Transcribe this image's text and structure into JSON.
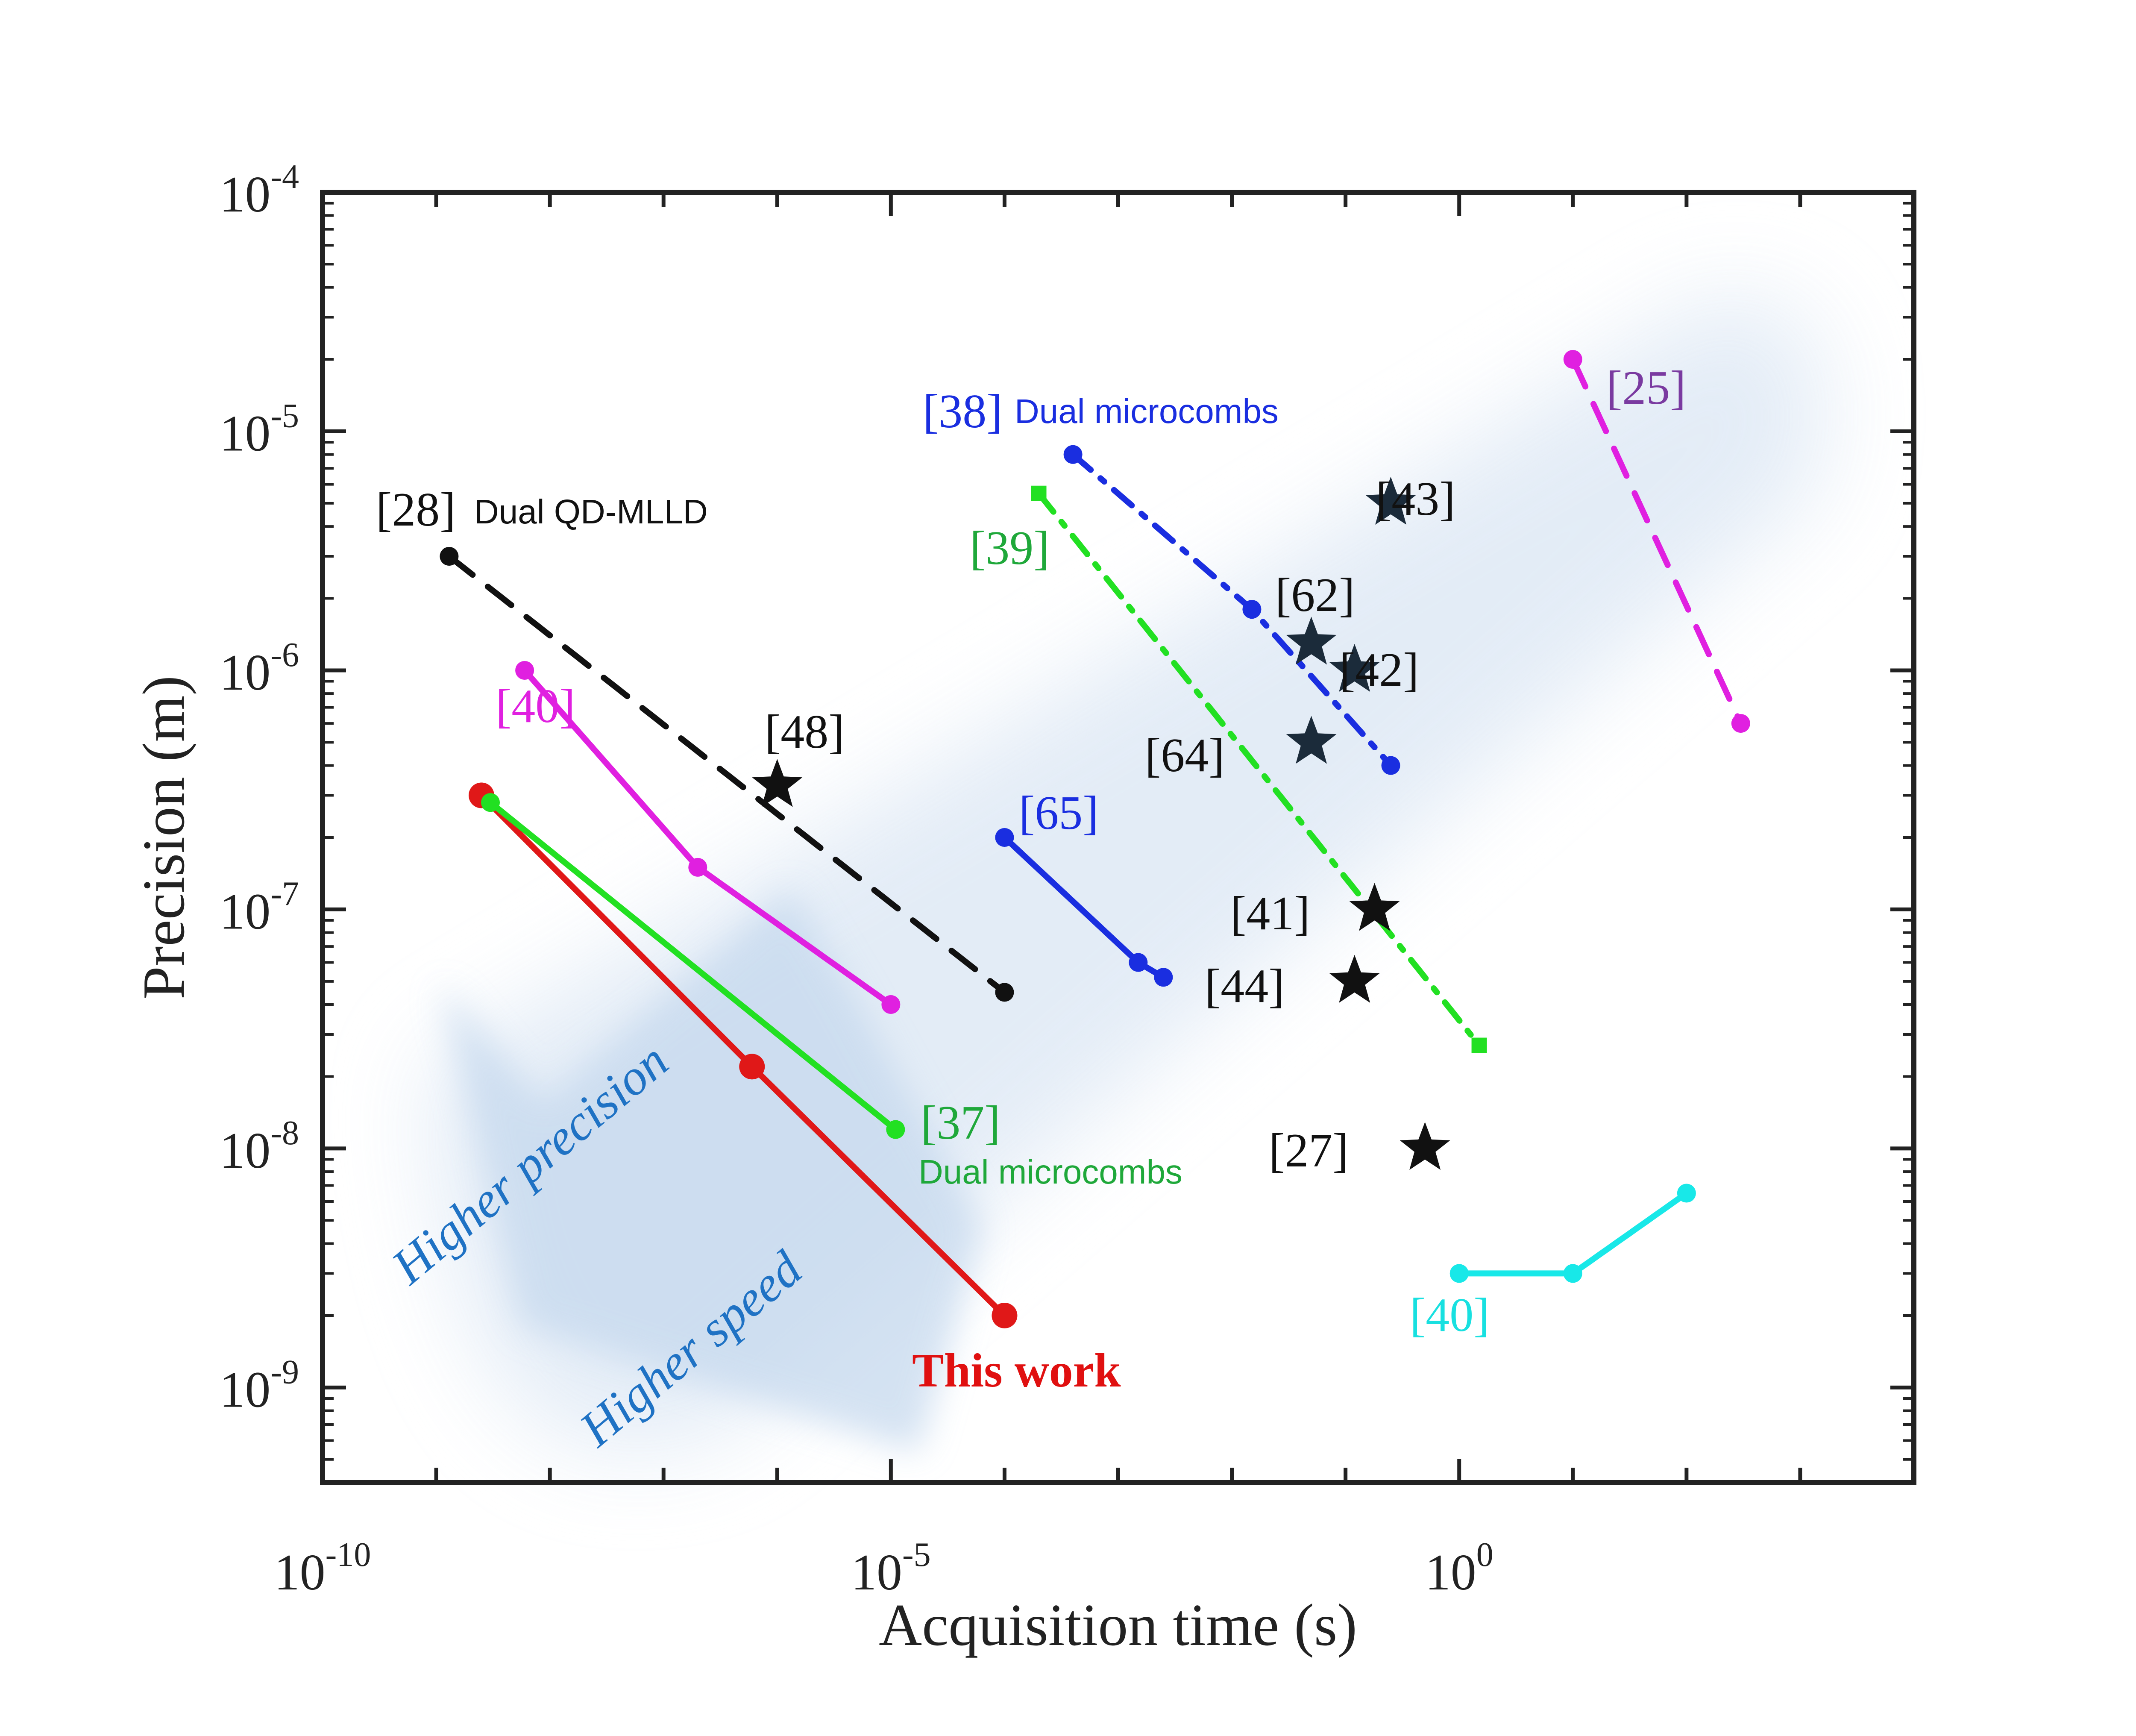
{
  "chart_data": {
    "type": "line",
    "xscale": "log",
    "yscale": "log",
    "xlabel": "Acquisition time (s)",
    "ylabel": "Precision (m)",
    "xlim": [
      1e-10,
      10000.0
    ],
    "ylim": [
      4e-10,
      0.0001
    ],
    "x_ticks": [
      {
        "base": "10",
        "exp": "-10",
        "value": 1e-10
      },
      {
        "base": "10",
        "exp": "-5",
        "value": 1e-05
      },
      {
        "base": "10",
        "exp": "0",
        "value": 1
      }
    ],
    "y_ticks": [
      {
        "base": "10",
        "exp": "-9",
        "value": 1e-09
      },
      {
        "base": "10",
        "exp": "-8",
        "value": 1e-08
      },
      {
        "base": "10",
        "exp": "-7",
        "value": 1e-07
      },
      {
        "base": "10",
        "exp": "-6",
        "value": 1e-06
      },
      {
        "base": "10",
        "exp": "-5",
        "value": 1e-05
      },
      {
        "base": "10",
        "exp": "-4",
        "value": 0.0001
      }
    ],
    "series": [
      {
        "name": "This work",
        "color": "#e01818",
        "dash": "solid",
        "marker": "circle-lg",
        "x": [
          2.5e-09,
          6e-07,
          0.0001
        ],
        "y": [
          3e-07,
          2.2e-08,
          2e-09
        ]
      },
      {
        "name": "[37]",
        "color": "#22e022",
        "dash": "solid",
        "marker": "circle",
        "x": [
          3e-09,
          1.1e-05
        ],
        "y": [
          2.8e-07,
          1.2e-08
        ]
      },
      {
        "name": "[40] magenta",
        "color": "#e020e0",
        "dash": "solid",
        "marker": "circle",
        "x": [
          6e-09,
          2e-07,
          1e-05
        ],
        "y": [
          1e-06,
          1.5e-07,
          4e-08
        ]
      },
      {
        "name": "[28]",
        "color": "#111111",
        "dash": "dashed",
        "marker": "circle",
        "x": [
          1.3e-09,
          0.0001
        ],
        "y": [
          3e-06,
          4.5e-08
        ]
      },
      {
        "name": "[65]",
        "color": "#1a2ee0",
        "dash": "solid",
        "marker": "circle",
        "x": [
          0.0001,
          0.0015,
          0.0025
        ],
        "y": [
          2e-07,
          6e-08,
          5.2e-08
        ]
      },
      {
        "name": "[38]",
        "color": "#1a2ee0",
        "dash": "dashdot",
        "marker": "circle",
        "x": [
          0.0004,
          0.015,
          0.25
        ],
        "y": [
          8e-06,
          1.8e-06,
          4e-07
        ]
      },
      {
        "name": "[39]",
        "color": "#22e022",
        "dash": "dashdot",
        "marker": "square",
        "x": [
          0.0002,
          1.5
        ],
        "y": [
          5.5e-06,
          2.7e-08
        ]
      },
      {
        "name": "[25]",
        "color": "#e020e0",
        "dash": "dashed",
        "marker": "circle",
        "x": [
          10,
          300
        ],
        "y": [
          2e-05,
          6e-07
        ]
      },
      {
        "name": "[40] cyan",
        "color": "#18e8e8",
        "dash": "solid",
        "marker": "circle",
        "x": [
          1,
          10,
          100
        ],
        "y": [
          3e-09,
          3e-09,
          6.5e-09
        ]
      }
    ],
    "stars": [
      {
        "name": "[48]",
        "x": 1e-06,
        "y": 3.3e-07,
        "color": "#111111"
      },
      {
        "name": "[43]",
        "x": 0.25,
        "y": 5e-06,
        "color": "#1b2b3a"
      },
      {
        "name": "[62]",
        "x": 0.05,
        "y": 1.3e-06,
        "color": "#1b2b3a"
      },
      {
        "name": "[42]",
        "x": 0.12,
        "y": 1e-06,
        "color": "#1b2b3a"
      },
      {
        "name": "[64]",
        "x": 0.05,
        "y": 5e-07,
        "color": "#1b2b3a"
      },
      {
        "name": "[41]",
        "x": 0.18,
        "y": 1e-07,
        "color": "#111111"
      },
      {
        "name": "[44]",
        "x": 0.12,
        "y": 5e-08,
        "color": "#111111"
      },
      {
        "name": "[27]",
        "x": 0.5,
        "y": 1e-08,
        "color": "#111111"
      }
    ],
    "labels": {
      "ref_28": "[28]",
      "note_28": "Dual QD-MLLD",
      "ref_38": "[38]",
      "note_38": "Dual microcombs",
      "ref_39": "[39]",
      "ref_40a": "[40]",
      "ref_40b": "[40]",
      "ref_65": "[65]",
      "ref_25": "[25]",
      "ref_37": "[37]",
      "note_37": "Dual microcombs",
      "ref_48": "[48]",
      "ref_43": "[43]",
      "ref_62": "[62]",
      "ref_42": "[42]",
      "ref_64": "[64]",
      "ref_41": "[41]",
      "ref_44": "[44]",
      "ref_27": "[27]",
      "this_work": "This work"
    },
    "annotations": {
      "higher_precision": "Higher precision",
      "higher_speed": "Higher speed"
    }
  }
}
